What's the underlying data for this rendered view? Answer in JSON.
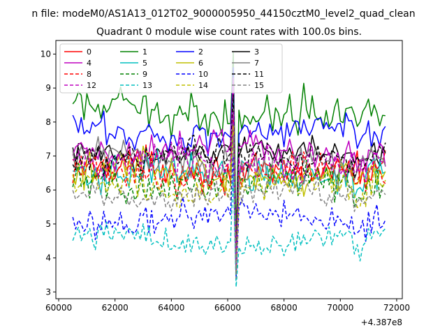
{
  "chart_data": {
    "type": "line",
    "suptitle": "n file: modeM0/AS1A13_012T02_9000005950_44150cztM0_level2_quad_clean",
    "title": "Quadrant 0 module wise count rates with 100.0s bins.",
    "xlabel": "",
    "ylabel": "",
    "x_offset_label": "+4.387e8",
    "x_range": [
      60500,
      71600
    ],
    "xlim": [
      59900,
      72200
    ],
    "ylim": [
      2.8,
      10.4
    ],
    "x_ticks": [
      60000,
      62000,
      64000,
      66000,
      68000,
      70000,
      72000
    ],
    "y_ticks": [
      3,
      4,
      5,
      6,
      7,
      8,
      9,
      10
    ],
    "burst": {
      "peak_x": 66200,
      "dip_x": 66270
    },
    "legend": {
      "placement": "top-left",
      "columns": 4
    },
    "series": [
      {
        "name": "0",
        "color": "#ff0000",
        "dash": "solid",
        "mean": 6.6,
        "noise": 0.35,
        "peak": 8.6,
        "dip": 3.8
      },
      {
        "name": "1",
        "color": "#008000",
        "dash": "solid",
        "mean": 8.3,
        "noise": 0.4,
        "peak": 10.05,
        "dip": 4.5
      },
      {
        "name": "2",
        "color": "#0000ff",
        "dash": "solid",
        "mean": 7.7,
        "noise": 0.35,
        "peak": 9.6,
        "dip": 3.6
      },
      {
        "name": "3",
        "color": "#000000",
        "dash": "solid",
        "mean": 7.1,
        "noise": 0.3,
        "peak": 9.0,
        "dip": 3.9
      },
      {
        "name": "4",
        "color": "#bf00bf",
        "dash": "solid",
        "mean": 7.2,
        "noise": 0.35,
        "peak": 9.3,
        "dip": 3.7
      },
      {
        "name": "5",
        "color": "#00bfbf",
        "dash": "solid",
        "mean": 6.5,
        "noise": 0.35,
        "peak": 8.7,
        "dip": 3.8
      },
      {
        "name": "6",
        "color": "#bfbf00",
        "dash": "solid",
        "mean": 6.5,
        "noise": 0.35,
        "peak": 8.4,
        "dip": 3.5
      },
      {
        "name": "7",
        "color": "#808080",
        "dash": "solid",
        "mean": 6.8,
        "noise": 0.35,
        "peak": 8.4,
        "dip": 3.6
      },
      {
        "name": "8",
        "color": "#ff0000",
        "dash": "dashed",
        "mean": 6.5,
        "noise": 0.35,
        "peak": 8.2,
        "dip": 3.6
      },
      {
        "name": "9",
        "color": "#008000",
        "dash": "dashed",
        "mean": 6.2,
        "noise": 0.35,
        "peak": 8.0,
        "dip": 3.5
      },
      {
        "name": "10",
        "color": "#0000ff",
        "dash": "dashed",
        "mean": 5.2,
        "noise": 0.3,
        "peak": 7.0,
        "dip": 3.4
      },
      {
        "name": "11",
        "color": "#000000",
        "dash": "dashed",
        "mean": 7.0,
        "noise": 0.3,
        "peak": 8.8,
        "dip": 3.7
      },
      {
        "name": "12",
        "color": "#bf00bf",
        "dash": "dashed",
        "mean": 6.8,
        "noise": 0.35,
        "peak": 8.3,
        "dip": 3.6
      },
      {
        "name": "13",
        "color": "#00bfbf",
        "dash": "dashed",
        "mean": 4.5,
        "noise": 0.3,
        "peak": 6.5,
        "dip": 3.15
      },
      {
        "name": "14",
        "color": "#bfbf00",
        "dash": "dashed",
        "mean": 6.1,
        "noise": 0.35,
        "peak": 7.9,
        "dip": 3.5
      },
      {
        "name": "15",
        "color": "#808080",
        "dash": "dashed",
        "mean": 5.9,
        "noise": 0.3,
        "peak": 7.6,
        "dip": 3.4
      }
    ]
  }
}
